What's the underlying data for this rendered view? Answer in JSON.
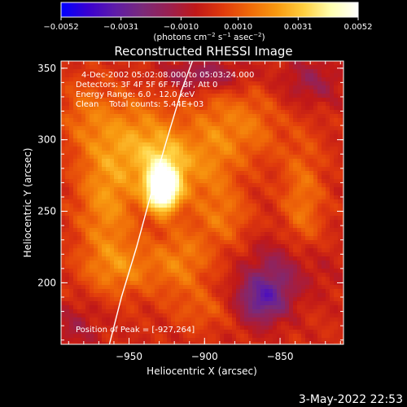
{
  "chart_data": {
    "type": "heatmap",
    "title": "Reconstructed RHESSI Image",
    "xlabel": "Heliocentric X (arcsec)",
    "ylabel": "Heliocentric Y (arcsec)",
    "xlim": [
      -995,
      -808
    ],
    "ylim": [
      157,
      355
    ],
    "x_ticks": [
      {
        "value": -950,
        "label": "−950"
      },
      {
        "value": -900,
        "label": "−900"
      },
      {
        "value": -850,
        "label": "−850"
      }
    ],
    "y_ticks": [
      {
        "value": 200,
        "label": "200"
      },
      {
        "value": 250,
        "label": "250"
      },
      {
        "value": 300,
        "label": "300"
      },
      {
        "value": 350,
        "label": "350"
      }
    ],
    "colorbar": {
      "range": [
        -0.0052,
        0.0052
      ],
      "tick_labels": [
        "−0.0052",
        "−0.0031",
        "−0.0010",
        "0.0010",
        "0.0031",
        "0.0052"
      ],
      "tick_values": [
        -0.0052,
        -0.0031,
        -0.001,
        0.001,
        0.0031,
        0.0052
      ],
      "unit_parts": [
        "(photons cm",
        "−2",
        " s",
        "−1",
        " asec",
        "−2",
        ")"
      ],
      "colormap": [
        "#0000ff",
        "#3a00d0",
        "#5e1ca8",
        "#7a2a7a",
        "#9a2050",
        "#c01818",
        "#e03a0c",
        "#f06a08",
        "#f89a10",
        "#ffd040",
        "#ffffb0",
        "#ffffff"
      ]
    },
    "annotations": [
      "4-Dec-2002 05:02:08.000 to 05:03:24.000",
      "Detectors: 3F 4F 5F 6F 7F 8F, Att 0",
      "Energy Range: 6.0 - 12.0 keV",
      "Clean    Total counts: 5.44E+03"
    ],
    "peak_label": "Position of Peak = [-927,264]",
    "peak": {
      "x": -927,
      "y": 264
    },
    "limb_arc": [
      [
        -963,
        157
      ],
      [
        -955,
        190
      ],
      [
        -945,
        225
      ],
      [
        -936,
        260
      ],
      [
        -925,
        300
      ],
      [
        -915,
        335
      ],
      [
        -908,
        355
      ]
    ],
    "blobs": [
      {
        "x": -928,
        "y": 264,
        "sx": 7,
        "sy": 10,
        "amp": 1.0
      },
      {
        "x": -925,
        "y": 278,
        "sx": 12,
        "sy": 16,
        "amp": 0.55
      },
      {
        "x": -945,
        "y": 300,
        "sx": 22,
        "sy": 22,
        "amp": 0.4
      },
      {
        "x": -965,
        "y": 255,
        "sx": 14,
        "sy": 30,
        "amp": 0.38
      },
      {
        "x": -955,
        "y": 210,
        "sx": 18,
        "sy": 14,
        "amp": 0.3
      },
      {
        "x": -915,
        "y": 215,
        "sx": 14,
        "sy": 18,
        "amp": 0.32
      },
      {
        "x": -895,
        "y": 290,
        "sx": 12,
        "sy": 30,
        "amp": 0.3
      },
      {
        "x": -870,
        "y": 310,
        "sx": 15,
        "sy": 20,
        "amp": 0.28
      },
      {
        "x": -835,
        "y": 255,
        "sx": 10,
        "sy": 35,
        "amp": 0.3
      },
      {
        "x": -885,
        "y": 245,
        "sx": 12,
        "sy": 14,
        "amp": 0.22
      },
      {
        "x": -980,
        "y": 320,
        "sx": 12,
        "sy": 18,
        "amp": 0.2
      },
      {
        "x": -900,
        "y": 180,
        "sx": 14,
        "sy": 10,
        "amp": 0.18
      },
      {
        "x": -862,
        "y": 188,
        "sx": 12,
        "sy": 12,
        "amp": -0.55
      },
      {
        "x": -845,
        "y": 210,
        "sx": 18,
        "sy": 16,
        "amp": -0.3
      },
      {
        "x": -900,
        "y": 345,
        "sx": 20,
        "sy": 8,
        "amp": -0.35
      },
      {
        "x": -830,
        "y": 340,
        "sx": 14,
        "sy": 12,
        "amp": -0.25
      },
      {
        "x": -985,
        "y": 170,
        "sx": 12,
        "sy": 12,
        "amp": -0.18
      }
    ]
  },
  "footer": {
    "timestamp": "3-May-2022 22:53"
  }
}
